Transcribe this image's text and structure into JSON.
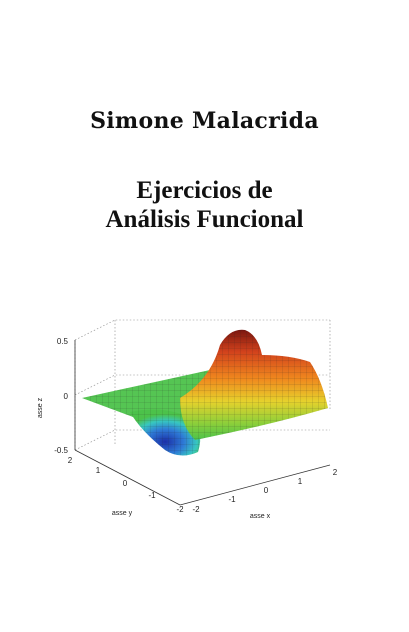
{
  "author": "Simone Malacrida",
  "title_line1": "Ejercicios de",
  "title_line2": "Análisis Funcional",
  "plot": {
    "z_ticks": [
      "0.5",
      "0",
      "-0.5"
    ],
    "y_ticks": [
      "2",
      "1",
      "0",
      "-1",
      "-2"
    ],
    "x_ticks": [
      "-2",
      "-1",
      "0",
      "1",
      "2"
    ],
    "z_label": "asse z",
    "y_label": "asse y",
    "x_label": "asse x",
    "surface_colors": {
      "low": "#1f3fbf",
      "mid": "#4cc24a",
      "high": "#8b1a10",
      "peak": "#d8431b",
      "yellow": "#e6d12c"
    }
  }
}
